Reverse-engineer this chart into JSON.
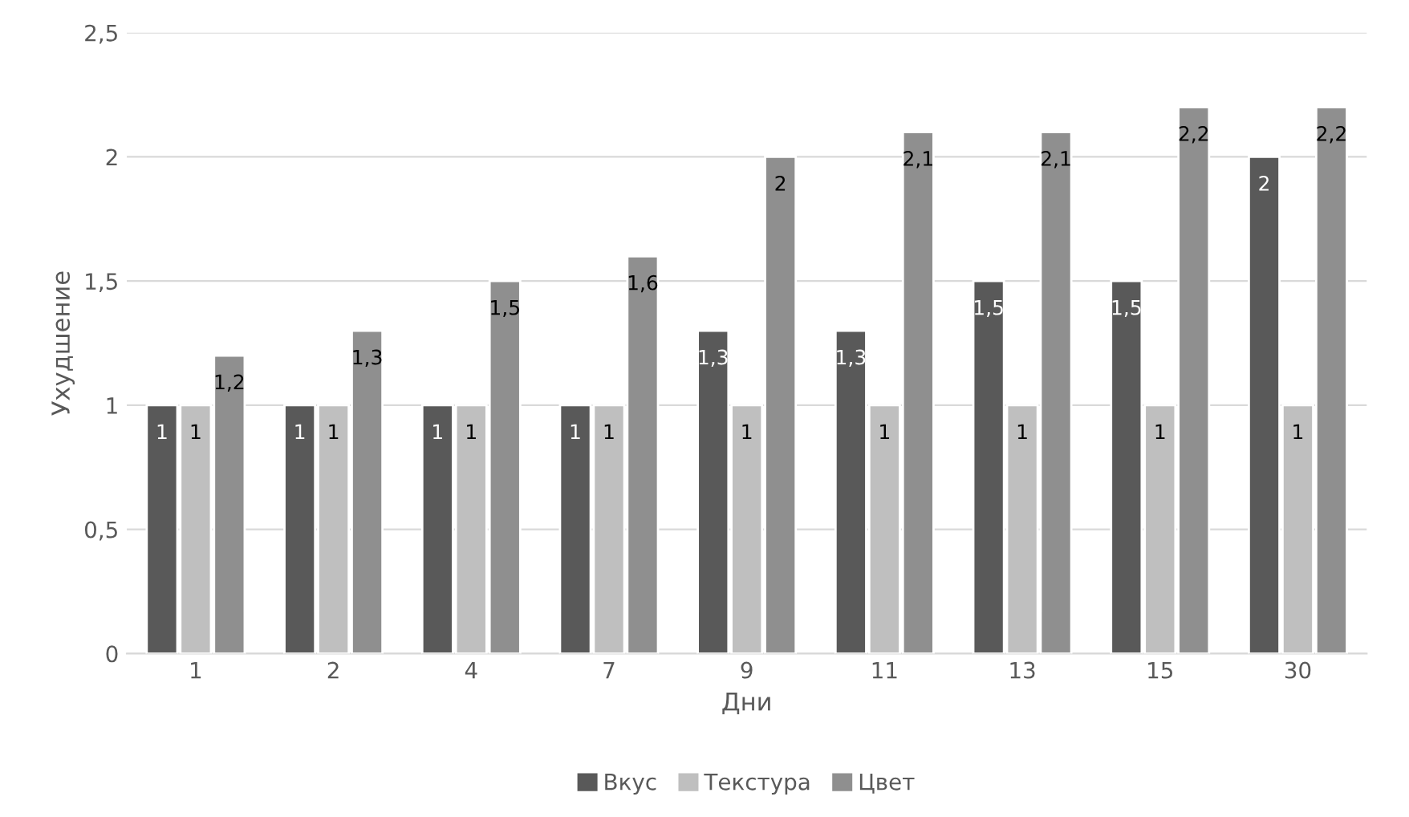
{
  "chart_data": {
    "type": "bar",
    "xlabel": "Дни",
    "ylabel": "Ухудшение",
    "categories": [
      "1",
      "2",
      "4",
      "7",
      "9",
      "11",
      "13",
      "15",
      "30"
    ],
    "series": [
      {
        "name": "Вкус",
        "color": "#595959",
        "values": [
          1,
          1,
          1,
          1,
          1.3,
          1.3,
          1.5,
          1.5,
          2
        ],
        "value_labels": [
          "1",
          "1",
          "1",
          "1",
          "1,3",
          "1,3",
          "1,5",
          "1,5",
          "2"
        ]
      },
      {
        "name": "Текстура",
        "color": "#bfbfbf",
        "values": [
          1,
          1,
          1,
          1,
          1,
          1,
          1,
          1,
          1
        ],
        "value_labels": [
          "1",
          "1",
          "1",
          "1",
          "1",
          "1",
          "1",
          "1",
          "1"
        ]
      },
      {
        "name": "Цвет",
        "color": "#8f8f8f",
        "values": [
          1.2,
          1.3,
          1.5,
          1.6,
          2,
          2.1,
          2.1,
          2.2,
          2.2
        ],
        "value_labels": [
          "1,2",
          "1,3",
          "1,5",
          "1,6",
          "2",
          "2,1",
          "2,1",
          "2,2",
          "2,2"
        ]
      }
    ],
    "ylim": [
      0,
      2.5
    ],
    "yticks": [
      0,
      {
        "value": 0.5,
        "label": "0,5"
      },
      1,
      {
        "value": 1.5,
        "label": "1,5"
      },
      2,
      {
        "value": 2.5,
        "label": "2,5"
      }
    ],
    "grid": "y",
    "legend": "bottom"
  }
}
